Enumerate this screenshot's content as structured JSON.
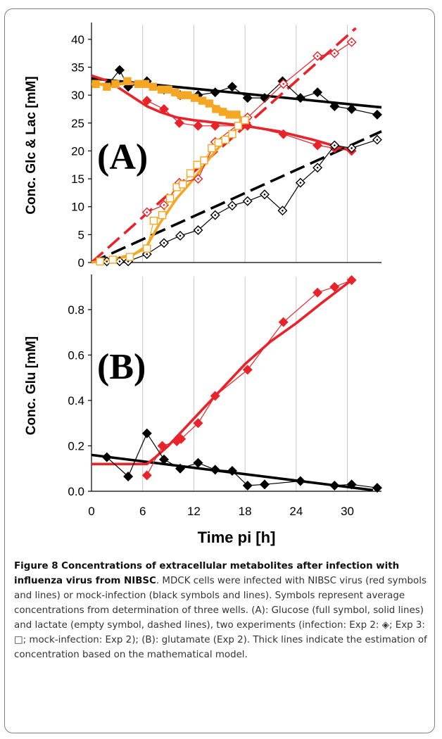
{
  "chart_data": [
    {
      "type": "line",
      "panel_label": "(A)",
      "ylabel": "Conc. Glc & Lac [mM]",
      "ylim": [
        0,
        42
      ],
      "yticks": [
        "0",
        "5",
        "10",
        "15",
        "20",
        "25",
        "30",
        "35",
        "40"
      ],
      "xlim": [
        0,
        34
      ],
      "grid": "vertical lines at 6, 12, 18, 24, 30",
      "series": [
        {
          "color": "#000000",
          "marker": "filled-diamond",
          "style": "thin",
          "x": [
            2,
            3.3,
            4.3,
            6.5,
            8.5,
            10.4,
            12.5,
            14.5,
            16.5,
            18.3,
            20.3,
            22.4,
            24.5,
            26.5,
            28.5,
            30.5,
            33.5
          ],
          "y": [
            32,
            34.5,
            31.5,
            32.5,
            31,
            30,
            30,
            30.5,
            31.5,
            29.5,
            29.5,
            32.5,
            29.5,
            30.5,
            28,
            27.5,
            26.5
          ]
        },
        {
          "color": "#000000",
          "style": "thick-solid",
          "x": [
            0,
            34
          ],
          "y": [
            33,
            27.8
          ]
        },
        {
          "color": "#e8232a",
          "marker": "filled-diamond",
          "style": "thin",
          "x": [
            6.5,
            8.5,
            10.3,
            12.5,
            14.5,
            18.3,
            22.5,
            26.5,
            28.5,
            30.5
          ],
          "y": [
            29,
            27.5,
            25,
            24.5,
            24.5,
            24.5,
            23,
            21,
            20.5,
            20
          ]
        },
        {
          "color": "#e8232a",
          "style": "thick-solid",
          "x": [
            0,
            2,
            3.5,
            5,
            6.5,
            8,
            10,
            12,
            15,
            18,
            22,
            26,
            30.5
          ],
          "y": [
            33.5,
            32.5,
            31,
            29.5,
            28,
            27,
            26,
            25.5,
            25,
            24.5,
            23.5,
            22,
            20
          ]
        },
        {
          "color": "#f5a623",
          "marker": "filled-square",
          "style": "thin",
          "x": [
            0.5,
            1.8,
            2.8,
            4.2,
            5.5,
            6.3,
            7.2,
            8.2,
            9,
            9.8,
            10.5,
            11.3,
            12.1,
            13,
            13.8,
            14.6,
            15.4,
            16.2,
            17,
            17.8
          ],
          "y": [
            32,
            31.5,
            32,
            32.5,
            32,
            32,
            31.5,
            31,
            31,
            30.5,
            30,
            30,
            29.5,
            29,
            28.5,
            27.5,
            27,
            26.5,
            26.5,
            25.5
          ]
        },
        {
          "color": "#f5a623",
          "style": "thick-solid",
          "x": [
            0,
            5,
            7,
            9,
            11,
            13,
            14.5,
            16,
            17,
            18
          ],
          "y": [
            32,
            32,
            31.5,
            30.7,
            30,
            29,
            28,
            27,
            26.5,
            25.5
          ]
        },
        {
          "color": "#000000",
          "marker": "open-diamond",
          "style": "thin",
          "x": [
            1.8,
            3.3,
            4.3,
            6.5,
            8.5,
            10.4,
            12.5,
            14.5,
            16.5,
            18.3,
            20.3,
            22.4,
            24.5,
            26.5,
            28.5,
            30.5,
            33.5
          ],
          "y": [
            0.2,
            0.2,
            0.2,
            1.5,
            3.5,
            4.8,
            5.8,
            8.5,
            10.2,
            11,
            12.2,
            9.3,
            14.3,
            17,
            21,
            20.5,
            22
          ]
        },
        {
          "color": "#000000",
          "style": "thick-dashed",
          "x": [
            0,
            34
          ],
          "y": [
            0,
            23.5
          ]
        },
        {
          "color": "#e8232a",
          "marker": "open-diamond",
          "style": "thin",
          "x": [
            6.5,
            8.5,
            10.3,
            12.5,
            14.5,
            18.3,
            22.5,
            26.5,
            28.5,
            30.5
          ],
          "y": [
            9,
            10.3,
            14.3,
            15,
            21.6,
            26,
            32,
            37,
            37.5,
            39.5
          ]
        },
        {
          "color": "#e8232a",
          "style": "thick-dashed",
          "x": [
            0,
            31
          ],
          "y": [
            0,
            42
          ]
        },
        {
          "color": "#f5a623",
          "marker": "open-square",
          "style": "thin",
          "x": [
            1,
            2.5,
            4.5,
            6.5,
            7.3,
            8.3,
            9.2,
            10,
            10.7,
            11.6,
            12.4,
            13.2,
            14.1,
            14.9,
            15.7,
            16.5,
            17.2,
            18
          ],
          "y": [
            0.2,
            0.5,
            1,
            2.5,
            7.5,
            8.5,
            11.5,
            13.5,
            14,
            16,
            17.5,
            18.3,
            20.5,
            21.5,
            22,
            23,
            24.5,
            25.5
          ]
        },
        {
          "color": "#f5a623",
          "style": "thick-solid",
          "x": [
            0,
            3,
            5,
            6.5,
            8,
            10,
            12,
            14,
            16,
            18
          ],
          "y": [
            0,
            0.8,
            1.5,
            3,
            7,
            11.5,
            15,
            19,
            22.5,
            25.5
          ]
        }
      ],
      "annotations": []
    },
    {
      "type": "line",
      "panel_label": "(B)",
      "ylabel": "Conc. Glu [mM]",
      "ylim": [
        0,
        0.93
      ],
      "yticks": [
        "0.0",
        "0.2",
        "0.4",
        "0.6",
        "0.8"
      ],
      "xlim": [
        0,
        34
      ],
      "xticks": [
        "0",
        "6",
        "12",
        "18",
        "24",
        "30"
      ],
      "xlabel": "Time pi [h]",
      "grid": "vertical lines at 6, 12, 18, 24, 30",
      "series": [
        {
          "color": "#000000",
          "marker": "filled-diamond",
          "style": "thin",
          "x": [
            1.8,
            4.3,
            6.5,
            8.5,
            10.4,
            12.5,
            14.5,
            16.5,
            18.3,
            20.3,
            24.5,
            28.5,
            30.5,
            33.5
          ],
          "y": [
            0.15,
            0.065,
            0.255,
            0.14,
            0.1,
            0.125,
            0.095,
            0.09,
            0.025,
            0.03,
            0.045,
            0.025,
            0.03,
            0.015
          ]
        },
        {
          "color": "#000000",
          "style": "thick-solid",
          "x": [
            0,
            33
          ],
          "y": [
            0.16,
            0.005
          ]
        },
        {
          "color": "#e8232a",
          "marker": "filled-diamond",
          "style": "thin",
          "x": [
            6.5,
            8.3,
            10,
            10.5,
            12.5,
            14.5,
            18.3,
            22.5,
            26.5,
            28.5,
            30.5
          ],
          "y": [
            0.07,
            0.2,
            0.22,
            0.23,
            0.3,
            0.42,
            0.535,
            0.745,
            0.875,
            0.9,
            0.93
          ]
        },
        {
          "color": "#e8232a",
          "style": "thick-solid",
          "x": [
            0,
            6.5,
            7.5,
            9,
            11,
            13,
            15,
            18,
            21,
            24,
            27,
            30.5
          ],
          "y": [
            0.12,
            0.12,
            0.15,
            0.2,
            0.28,
            0.36,
            0.44,
            0.56,
            0.66,
            0.74,
            0.83,
            0.93
          ]
        }
      ],
      "annotations": []
    }
  ],
  "caption": {
    "bold_part": "Figure 8 Concentrations of extracellular metabolites after infection with influenza virus from NIBSC",
    "body": ". MDCK cells were infected with NIBSC virus (red symbols and lines) or mock-infection (black symbols and lines). Symbols represent average concentrations from determination of three wells. (A): Glucose (full symbol, solid lines) and lactate (empty symbol, dashed lines), two experiments (infection: Exp 2: ◈; Exp 3: □; mock-infection: Exp 2); (B): glutamate (Exp 2). Thick lines indicate the estimation of concentration based on the mathematical model."
  }
}
